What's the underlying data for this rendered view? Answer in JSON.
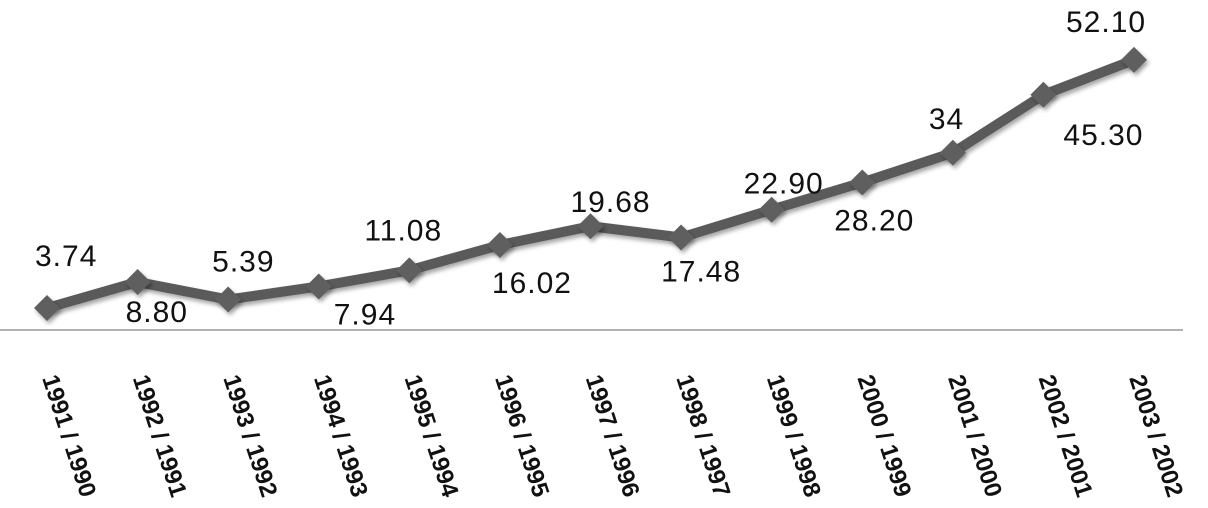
{
  "chart_data": {
    "type": "line",
    "categories": [
      "1991 / 1990",
      "1992 / 1991",
      "1993 / 1992",
      "1994 / 1993",
      "1995 / 1994",
      "1996 / 1995",
      "1997 / 1996",
      "1998 / 1997",
      "1999 / 1998",
      "2000 / 1999",
      "2001 / 2000",
      "2002 / 2001",
      "2003 / 2002"
    ],
    "values": [
      3.74,
      8.8,
      5.39,
      7.94,
      11.08,
      16.02,
      19.68,
      17.48,
      22.9,
      28.2,
      34,
      45.3,
      52.1
    ],
    "data_labels": [
      "3.74",
      "8.80",
      "5.39",
      "7.94",
      "11.08",
      "16.02",
      "19.68",
      "17.48",
      "22.90",
      "28.20",
      "34",
      "45.30",
      "52.10"
    ],
    "label_positions": [
      "above",
      "below",
      "above",
      "below",
      "above",
      "below",
      "above",
      "below",
      "above",
      "below",
      "above",
      "below",
      "above"
    ],
    "title": "",
    "xlabel": "",
    "ylabel": "",
    "ylim": [
      0,
      55
    ],
    "grid": false,
    "legend": "none",
    "colors": {
      "line": "#5a5a5a",
      "marker": "#5f5f5f",
      "axis": "#9a9a9a",
      "text": "#111111"
    }
  }
}
